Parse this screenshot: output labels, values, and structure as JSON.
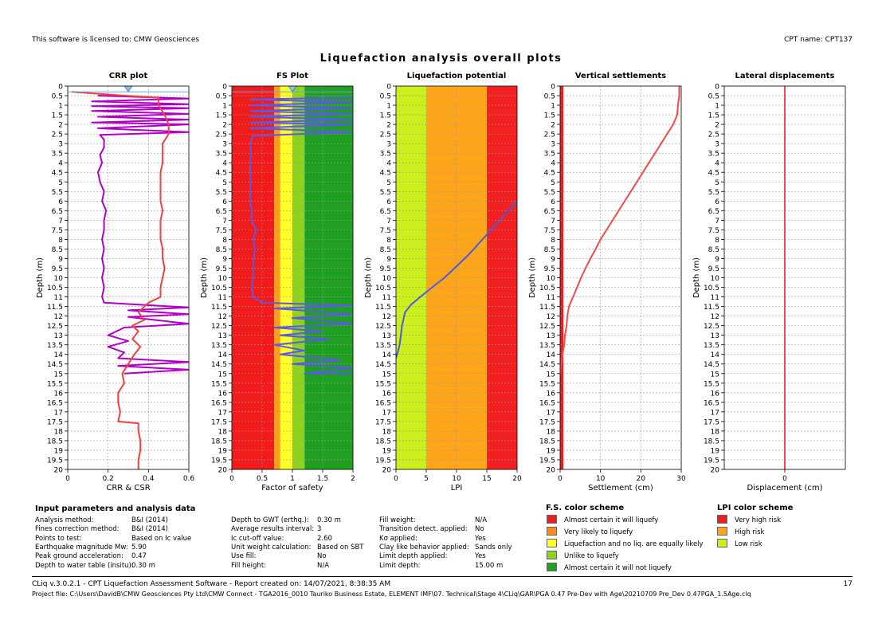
{
  "header": {
    "license": "This software is licensed to: CMW Geosciences",
    "cpt_name": "CPT name: CPT137",
    "main_title": "Liquefaction analysis overall plots"
  },
  "chart_data": [
    {
      "type": "line",
      "title": "CRR plot",
      "xlabel": "CRR & CSR",
      "ylabel": "Depth (m)",
      "xlim": [
        0,
        0.6
      ],
      "xticks": [
        "0",
        "0.2",
        "0.4",
        "0.6"
      ],
      "ylim": [
        20,
        0
      ],
      "grid": true,
      "series": [
        {
          "color": "#b000c8",
          "points": [
            [
              0.15,
              0.5
            ],
            [
              0.6,
              0.65
            ],
            [
              0.12,
              0.8
            ],
            [
              0.6,
              0.95
            ],
            [
              0.12,
              1.05
            ],
            [
              0.6,
              1.15
            ],
            [
              0.12,
              1.3
            ],
            [
              0.6,
              1.45
            ],
            [
              0.15,
              1.6
            ],
            [
              0.6,
              1.75
            ],
            [
              0.12,
              1.9
            ],
            [
              0.6,
              2.0
            ],
            [
              0.15,
              2.2
            ],
            [
              0.6,
              2.4
            ],
            [
              0.16,
              2.55
            ],
            [
              0.18,
              2.8
            ],
            [
              0.18,
              3.2
            ],
            [
              0.16,
              3.6
            ],
            [
              0.17,
              4.0
            ],
            [
              0.15,
              4.5
            ],
            [
              0.16,
              5.0
            ],
            [
              0.18,
              5.5
            ],
            [
              0.17,
              6.0
            ],
            [
              0.19,
              6.5
            ],
            [
              0.18,
              7.0
            ],
            [
              0.18,
              7.5
            ],
            [
              0.17,
              8.0
            ],
            [
              0.18,
              8.5
            ],
            [
              0.17,
              9.0
            ],
            [
              0.18,
              9.5
            ],
            [
              0.17,
              10.0
            ],
            [
              0.18,
              10.5
            ],
            [
              0.17,
              11.0
            ],
            [
              0.18,
              11.3
            ],
            [
              0.6,
              11.55
            ],
            [
              0.3,
              11.7
            ],
            [
              0.6,
              11.9
            ],
            [
              0.3,
              12.05
            ],
            [
              0.6,
              12.4
            ],
            [
              0.28,
              12.6
            ],
            [
              0.2,
              13.0
            ],
            [
              0.3,
              13.3
            ],
            [
              0.2,
              13.6
            ],
            [
              0.28,
              13.9
            ],
            [
              0.25,
              14.2
            ],
            [
              0.6,
              14.4
            ],
            [
              0.25,
              14.6
            ],
            [
              0.6,
              14.8
            ],
            [
              0.28,
              15.0
            ]
          ]
        },
        {
          "color": "#f24040",
          "points": [
            [
              0.02,
              0.3
            ],
            [
              0.28,
              0.5
            ],
            [
              0.45,
              0.6
            ],
            [
              0.45,
              1.0
            ],
            [
              0.48,
              1.5
            ],
            [
              0.5,
              2.0
            ],
            [
              0.5,
              2.5
            ],
            [
              0.47,
              3.0
            ],
            [
              0.47,
              3.5
            ],
            [
              0.47,
              4.0
            ],
            [
              0.46,
              4.5
            ],
            [
              0.46,
              5.0
            ],
            [
              0.46,
              5.5
            ],
            [
              0.46,
              6.0
            ],
            [
              0.47,
              6.5
            ],
            [
              0.46,
              7.0
            ],
            [
              0.46,
              7.5
            ],
            [
              0.46,
              8.0
            ],
            [
              0.47,
              8.5
            ],
            [
              0.47,
              9.0
            ],
            [
              0.48,
              9.5
            ],
            [
              0.47,
              10.0
            ],
            [
              0.46,
              10.5
            ],
            [
              0.46,
              11.0
            ],
            [
              0.4,
              11.3
            ],
            [
              0.35,
              11.8
            ],
            [
              0.38,
              12.2
            ],
            [
              0.32,
              12.5
            ],
            [
              0.35,
              12.8
            ],
            [
              0.32,
              13.2
            ],
            [
              0.36,
              13.6
            ],
            [
              0.33,
              14.0
            ],
            [
              0.3,
              14.5
            ],
            [
              0.27,
              15.0
            ],
            [
              0.28,
              15.5
            ],
            [
              0.25,
              16.0
            ],
            [
              0.25,
              16.5
            ],
            [
              0.26,
              17.0
            ],
            [
              0.25,
              17.5
            ],
            [
              0.35,
              17.6
            ],
            [
              0.35,
              18.0
            ],
            [
              0.36,
              18.5
            ],
            [
              0.36,
              19.0
            ],
            [
              0.35,
              19.5
            ],
            [
              0.35,
              20.0
            ]
          ]
        }
      ],
      "water_table_marker": {
        "x": 0.3,
        "y": 0.1
      }
    },
    {
      "type": "line",
      "title": "FS Plot",
      "xlabel": "Factor of safety",
      "ylabel": "Depth (m)",
      "xlim": [
        0,
        2
      ],
      "xticks": [
        "0",
        "0.5",
        "1",
        "1.5",
        "2"
      ],
      "ylim": [
        20,
        0
      ],
      "grid": true,
      "bands": [
        {
          "from": 0,
          "to": 0.7,
          "color": "#f21b1b"
        },
        {
          "from": 0.7,
          "to": 0.8,
          "color": "#ff9c1a"
        },
        {
          "from": 0.8,
          "to": 1.0,
          "color": "#ffff2a"
        },
        {
          "from": 1.0,
          "to": 1.2,
          "color": "#8fd21c"
        },
        {
          "from": 1.2,
          "to": 2.0,
          "color": "#20a020"
        }
      ],
      "series": [
        {
          "color": "#5a5ae6",
          "points": [
            [
              2,
              0.6
            ],
            [
              0.3,
              0.7
            ],
            [
              2,
              0.85
            ],
            [
              0.3,
              1.0
            ],
            [
              2,
              1.15
            ],
            [
              0.3,
              1.3
            ],
            [
              2,
              1.45
            ],
            [
              0.3,
              1.6
            ],
            [
              2,
              1.75
            ],
            [
              0.3,
              1.9
            ],
            [
              2,
              2.0
            ],
            [
              0.3,
              2.2
            ],
            [
              2,
              2.4
            ],
            [
              0.35,
              2.6
            ],
            [
              0.3,
              3.0
            ],
            [
              0.32,
              3.5
            ],
            [
              0.3,
              4.0
            ],
            [
              0.3,
              4.5
            ],
            [
              0.31,
              5.0
            ],
            [
              0.3,
              5.5
            ],
            [
              0.3,
              6.0
            ],
            [
              0.33,
              6.5
            ],
            [
              0.32,
              7.0
            ],
            [
              0.4,
              7.5
            ],
            [
              0.35,
              8.0
            ],
            [
              0.38,
              8.5
            ],
            [
              0.36,
              9.0
            ],
            [
              0.35,
              9.5
            ],
            [
              0.35,
              10.0
            ],
            [
              0.33,
              10.5
            ],
            [
              0.35,
              11.0
            ],
            [
              0.5,
              11.3
            ],
            [
              2,
              11.45
            ],
            [
              0.7,
              11.6
            ],
            [
              2,
              11.9
            ],
            [
              1.0,
              12.1
            ],
            [
              2,
              12.4
            ],
            [
              0.7,
              12.6
            ],
            [
              1.5,
              12.8
            ],
            [
              0.8,
              13.0
            ],
            [
              1.6,
              13.2
            ],
            [
              0.7,
              13.5
            ],
            [
              1.2,
              13.8
            ],
            [
              0.8,
              14.0
            ],
            [
              1.8,
              14.3
            ],
            [
              1.0,
              14.5
            ],
            [
              2,
              14.7
            ],
            [
              1.2,
              15.0
            ],
            [
              2,
              15.0
            ]
          ]
        }
      ],
      "water_table_marker": {
        "x": 1.0,
        "y": 0.1
      }
    },
    {
      "type": "line",
      "title": "Liquefaction potential",
      "xlabel": "LPI",
      "ylabel": "Depth (m)",
      "xlim": [
        0,
        20
      ],
      "xticks": [
        "0",
        "5",
        "10",
        "15",
        "20"
      ],
      "ylim": [
        20,
        0
      ],
      "grid": true,
      "bands": [
        {
          "from": 0,
          "to": 5,
          "color": "#ccf01e"
        },
        {
          "from": 5,
          "to": 15,
          "color": "#ffa51a"
        },
        {
          "from": 15,
          "to": 20,
          "color": "#f22020"
        }
      ],
      "series": [
        {
          "color": "#4a5ae0",
          "points": [
            [
              20,
              6.0
            ],
            [
              18,
              6.7
            ],
            [
              16,
              7.4
            ],
            [
              14,
              8.1
            ],
            [
              12,
              8.8
            ],
            [
              10,
              9.4
            ],
            [
              8,
              10.0
            ],
            [
              6,
              10.5
            ],
            [
              4,
              11.0
            ],
            [
              2.5,
              11.4
            ],
            [
              1.5,
              11.8
            ],
            [
              1.0,
              12.5
            ],
            [
              0.8,
              13.0
            ],
            [
              0.6,
              13.5
            ],
            [
              0.2,
              14.0
            ],
            [
              0,
              14.2
            ]
          ]
        }
      ]
    },
    {
      "type": "line",
      "title": "Vertical settlements",
      "xlabel": "Settlement (cm)",
      "ylabel": "Depth (m)",
      "xlim": [
        0,
        30
      ],
      "xticks": [
        "0",
        "10",
        "20",
        "30"
      ],
      "ylim": [
        20,
        0
      ],
      "grid": true,
      "bands": [
        {
          "from": 0,
          "to": 0.8,
          "color": "#f21b1b"
        }
      ],
      "series": [
        {
          "color": "#f24a4a",
          "points": [
            [
              29.5,
              0
            ],
            [
              29.5,
              0.5
            ],
            [
              29.2,
              1.0
            ],
            [
              29,
              1.5
            ],
            [
              28,
              2.0
            ],
            [
              26.5,
              2.5
            ],
            [
              25,
              3.0
            ],
            [
              23.5,
              3.5
            ],
            [
              22,
              4.0
            ],
            [
              20.5,
              4.5
            ],
            [
              19,
              5.0
            ],
            [
              17.5,
              5.5
            ],
            [
              16,
              6.0
            ],
            [
              14.5,
              6.5
            ],
            [
              13,
              7.0
            ],
            [
              11.5,
              7.5
            ],
            [
              10,
              8.0
            ],
            [
              8.8,
              8.5
            ],
            [
              7.5,
              9.0
            ],
            [
              6.3,
              9.5
            ],
            [
              5.2,
              10.0
            ],
            [
              4.2,
              10.5
            ],
            [
              3.2,
              11.0
            ],
            [
              2.2,
              11.5
            ],
            [
              1.8,
              12.0
            ],
            [
              1.6,
              12.5
            ],
            [
              1.2,
              13.0
            ],
            [
              1.0,
              13.5
            ],
            [
              0.6,
              14.0
            ],
            [
              0.3,
              14.5
            ],
            [
              0,
              15.0
            ]
          ]
        }
      ]
    },
    {
      "type": "line",
      "title": "Lateral displacements",
      "xlabel": "Displacement (cm)",
      "ylabel": "Depth (m)",
      "xlim": [
        -1,
        1
      ],
      "xticks": [
        "0"
      ],
      "ylim": [
        20,
        0
      ],
      "grid": true,
      "series": [
        {
          "color": "#f24a4a",
          "points": [
            [
              0,
              0
            ],
            [
              0,
              20
            ]
          ]
        }
      ]
    }
  ],
  "yticks": [
    "0",
    "0.5",
    "1",
    "1.5",
    "2",
    "2.5",
    "3",
    "3.5",
    "4",
    "4.5",
    "5",
    "5.5",
    "6",
    "6.5",
    "7",
    "7.5",
    "8",
    "8.5",
    "9",
    "9.5",
    "10",
    "10.5",
    "11",
    "11.5",
    "12",
    "12.5",
    "13",
    "13.5",
    "14",
    "14.5",
    "15",
    "15.5",
    "16",
    "16.5",
    "17",
    "17.5",
    "18",
    "18.5",
    "19",
    "19.5",
    "20"
  ],
  "input_params": {
    "title": "Input parameters and analysis data",
    "col1": [
      {
        "label": "Analysis method:",
        "value": "B&I (2014)"
      },
      {
        "label": "Fines correction method:",
        "value": "B&I (2014)"
      },
      {
        "label": "Points to test:",
        "value": "Based on Ic value"
      },
      {
        "label": "Earthquake magnitude Mw:",
        "value": "5.90"
      },
      {
        "label": "Peak ground acceleration:",
        "value": "0.47"
      },
      {
        "label": "Depth to water table (insitu):",
        "value": "0.30 m"
      }
    ],
    "col2": [
      {
        "label": "Depth to GWT (erthq.):",
        "value": "0.30 m"
      },
      {
        "label": "Average results interval:",
        "value": "3"
      },
      {
        "label": "Ic cut-off value:",
        "value": "2.60"
      },
      {
        "label": "Unit weight calculation:",
        "value": "Based on SBT"
      },
      {
        "label": "Use fill:",
        "value": "No"
      },
      {
        "label": "Fill height:",
        "value": "N/A"
      }
    ],
    "col3": [
      {
        "label": "Fill weight:",
        "value": "N/A"
      },
      {
        "label": "Transition detect. applied:",
        "value": "No"
      },
      {
        "label": "Kσ applied:",
        "value": "Yes"
      },
      {
        "label": "Clay like behavior applied:",
        "value": "Sands only"
      },
      {
        "label": "Limit depth applied:",
        "value": "Yes"
      },
      {
        "label": "Limit depth:",
        "value": "15.00 m"
      }
    ]
  },
  "fs_scheme": {
    "title": "F.S. color scheme",
    "items": [
      {
        "color": "#f21b1b",
        "label": "Almost certain it will liquefy"
      },
      {
        "color": "#ff8c1a",
        "label": "Very likely to liquefy"
      },
      {
        "color": "#ffff2a",
        "label": "Liquefaction and no liq. are equally likely"
      },
      {
        "color": "#8fd21c",
        "label": "Unlike to liquefy"
      },
      {
        "color": "#20a020",
        "label": "Almost certain it will not liquefy"
      }
    ]
  },
  "lpi_scheme": {
    "title": "LPI color scheme",
    "items": [
      {
        "color": "#f21b1b",
        "label": "Very high risk"
      },
      {
        "color": "#ffa51a",
        "label": "High risk"
      },
      {
        "color": "#ccf01e",
        "label": "Low risk"
      }
    ]
  },
  "footer": {
    "software": "CLiq v.3.0.2.1 - CPT Liquefaction Assessment Software - Report created on: 14/07/2021, 8:38:35 AM",
    "page": "17",
    "project_file": "Project file: C:\\Users\\DavidB\\CMW Geosciences Pty Ltd\\CMW Connect - TGA2016_0010 Tauriko Business Estate, ELEMENT IMF\\07. Technical\\Stage 4\\CLiq\\GAR\\PGA 0.47 Pre-Dev with Age\\20210709 Pre_Dev 0.47PGA_1.5Age.clq"
  }
}
